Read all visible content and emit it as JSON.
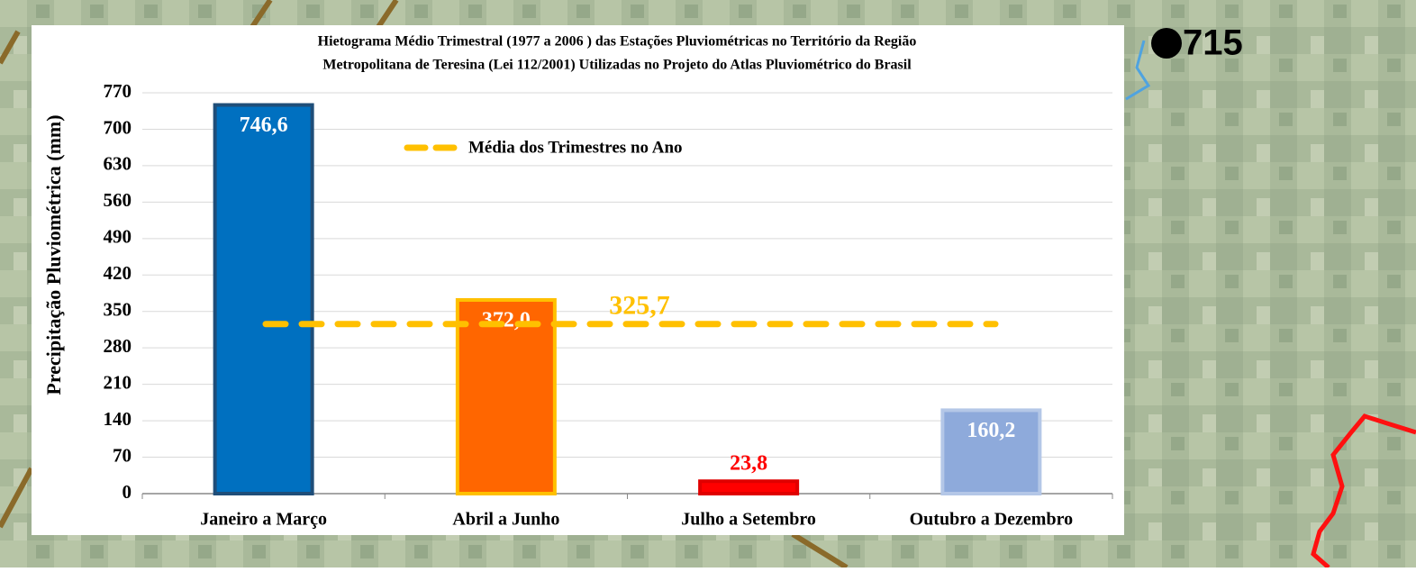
{
  "map_label": "715",
  "chart_data": {
    "type": "bar",
    "title": [
      "Hietograma Médio Trimestral  (1977 a 2006 ) das Estações Pluviométricas no Território da Região",
      "Metropolitana de Teresina (Lei 112/2001) Utilizadas no Projeto do Atlas Pluviométrico do Brasil"
    ],
    "y_label": "Precipitação Pluviométrica (mm)",
    "categories": [
      "Janeiro a Março",
      "Abril a Junho",
      "Julho a Setembro",
      "Outubro a Dezembro"
    ],
    "values": [
      746.6,
      372.0,
      23.8,
      160.2
    ],
    "value_labels": [
      "746,6",
      "372,0",
      "23,8",
      "160,2"
    ],
    "colors": [
      "#0070c0",
      "#ff6600",
      "#ff0000",
      "#8eaadb"
    ],
    "border_colors": [
      "#1f4e79",
      "#ffc000",
      "#e00000",
      "#b4c7e7"
    ],
    "label_colors": [
      "#ffffff",
      "#ffffff",
      "#ff0000",
      "#ffffff"
    ],
    "mean": {
      "name": "Média dos Trimestres no Ano",
      "value": 325.7,
      "label": "325,7",
      "color": "#ffc000"
    },
    "ylim": [
      0,
      770
    ],
    "yticks": [
      0,
      70,
      140,
      210,
      280,
      350,
      420,
      490,
      560,
      630,
      700,
      770
    ],
    "grid": true
  }
}
